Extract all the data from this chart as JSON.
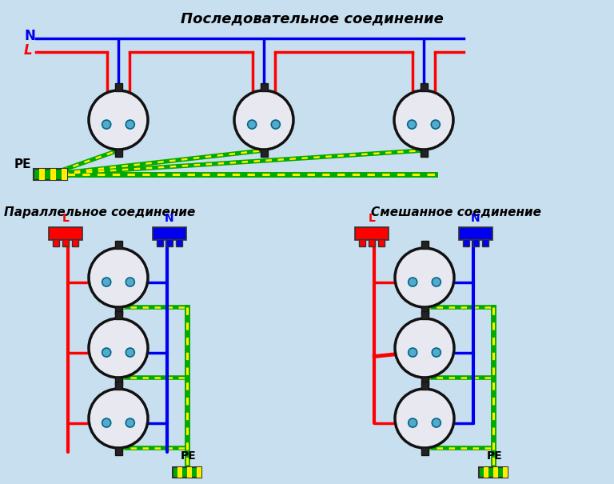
{
  "bg_color": "#c8dff0",
  "title_top": "Последовательное соединение",
  "title_left": "Параллельное соединение",
  "title_right": "Смешанное соединение",
  "wire_red": "#ff0000",
  "wire_blue": "#0000ee",
  "wire_green": "#00aa00",
  "wire_yellow": "#ffee00",
  "socket_face": "#e8e8f0",
  "socket_border": "#111111",
  "lw": 2.5,
  "lw_pe": 5.0
}
